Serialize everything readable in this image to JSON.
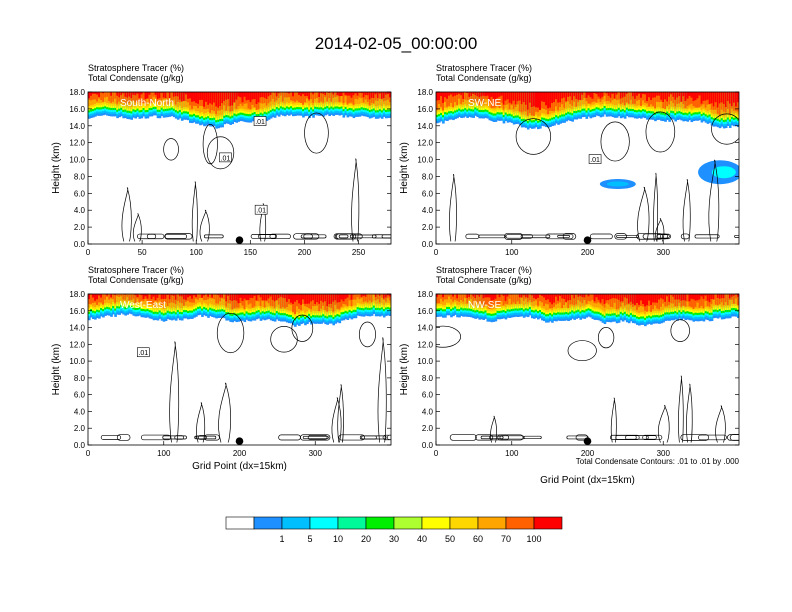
{
  "page": {
    "title": "2014-02-05_00:00:00"
  },
  "panel_labels": {
    "left_top": "Stratosphere Tracer   (%)",
    "left_bottom": "Total Condensate   (g/kg)"
  },
  "axis": {
    "ylabel": "Height (km)",
    "xlabel": "Grid Point (dx=15km)",
    "yticks": [
      "0.0",
      "2.0",
      "4.0",
      "6.0",
      "8.0",
      "10.0",
      "12.0",
      "14.0",
      "16.0",
      "18.0"
    ],
    "ylim": [
      0,
      18
    ]
  },
  "contour_note": "Total Condensate Contours: .01 to .01 by .000",
  "colorbar": {
    "colors": [
      "#ffffff",
      "#1e90ff",
      "#00bfff",
      "#00ffff",
      "#00fa9a",
      "#00ee00",
      "#adff2f",
      "#ffff00",
      "#ffd700",
      "#ffa500",
      "#ff6000",
      "#ff0000"
    ],
    "labels": [
      "1",
      "5",
      "10",
      "20",
      "30",
      "40",
      "50",
      "60",
      "70",
      "100"
    ]
  },
  "chart_data": [
    {
      "type": "heatmap",
      "title": "South-North",
      "xlim": [
        0,
        280
      ],
      "xticks": [
        "0",
        "50",
        "100",
        "150",
        "200",
        "250"
      ],
      "xtick_values": [
        0,
        50,
        100,
        150,
        200,
        250
      ],
      "ylim": [
        0,
        18
      ],
      "marker_x": 140,
      "contour_labels": [
        {
          "text": ".01",
          "x": 159,
          "y": 14.5
        },
        {
          "text": ".01",
          "x": 127,
          "y": 10.2
        },
        {
          "text": ".01",
          "x": 160,
          "y": 4.0
        }
      ],
      "tracer_profile": {
        "x": [
          0,
          20,
          40,
          60,
          80,
          100,
          120,
          140,
          160,
          180,
          200,
          220,
          240,
          260,
          280
        ],
        "bottom_km": [
          15.0,
          15.2,
          14.8,
          15.1,
          15.0,
          14.2,
          13.8,
          14.6,
          14.4,
          15.3,
          15.0,
          15.2,
          15.1,
          15.0,
          15.0
        ]
      }
    },
    {
      "type": "heatmap",
      "title": "SW-NE",
      "xlim": [
        0,
        400
      ],
      "xticks": [
        "0",
        "100",
        "200",
        "300"
      ],
      "xtick_values": [
        0,
        100,
        200,
        300
      ],
      "ylim": [
        0,
        18
      ],
      "marker_x": 200,
      "contour_labels": [
        {
          "text": ".01",
          "x": 210,
          "y": 10.0
        }
      ],
      "tracer_profile": {
        "x": [
          0,
          25,
          50,
          75,
          100,
          125,
          150,
          175,
          200,
          225,
          250,
          275,
          300,
          325,
          350,
          375,
          400
        ],
        "bottom_km": [
          14.2,
          14.8,
          15.1,
          14.6,
          14.3,
          13.6,
          14.0,
          14.5,
          15.0,
          15.2,
          15.0,
          14.8,
          14.6,
          14.7,
          14.5,
          13.8,
          14.0
        ]
      }
    },
    {
      "type": "heatmap",
      "title": "West-East",
      "xlim": [
        0,
        400
      ],
      "xticks": [
        "0",
        "100",
        "200",
        "300"
      ],
      "xtick_values": [
        0,
        100,
        200,
        300
      ],
      "ylim": [
        0,
        18
      ],
      "marker_x": 200,
      "contour_labels": [
        {
          "text": ".01",
          "x": 73,
          "y": 11.0
        }
      ],
      "tracer_profile": {
        "x": [
          0,
          25,
          50,
          75,
          100,
          125,
          150,
          175,
          200,
          225,
          250,
          275,
          300,
          325,
          350,
          375,
          400
        ],
        "bottom_km": [
          15.0,
          15.3,
          15.6,
          15.2,
          14.8,
          15.0,
          15.4,
          15.1,
          14.6,
          15.0,
          14.8,
          14.2,
          14.6,
          14.4,
          15.2,
          15.5,
          15.3
        ]
      }
    },
    {
      "type": "heatmap",
      "title": "NW-SE",
      "xlim": [
        0,
        400
      ],
      "xticks": [
        "0",
        "100",
        "200",
        "300"
      ],
      "xtick_values": [
        0,
        100,
        200,
        300
      ],
      "ylim": [
        0,
        18
      ],
      "marker_x": 200,
      "contour_labels": [],
      "tracer_profile": {
        "x": [
          0,
          25,
          50,
          75,
          100,
          125,
          150,
          175,
          200,
          225,
          250,
          275,
          300,
          325,
          350,
          375,
          400
        ],
        "bottom_km": [
          15.2,
          15.4,
          15.0,
          14.8,
          15.1,
          15.3,
          14.6,
          14.9,
          15.2,
          14.5,
          14.8,
          14.2,
          14.6,
          15.0,
          14.7,
          15.1,
          15.3
        ]
      }
    }
  ]
}
